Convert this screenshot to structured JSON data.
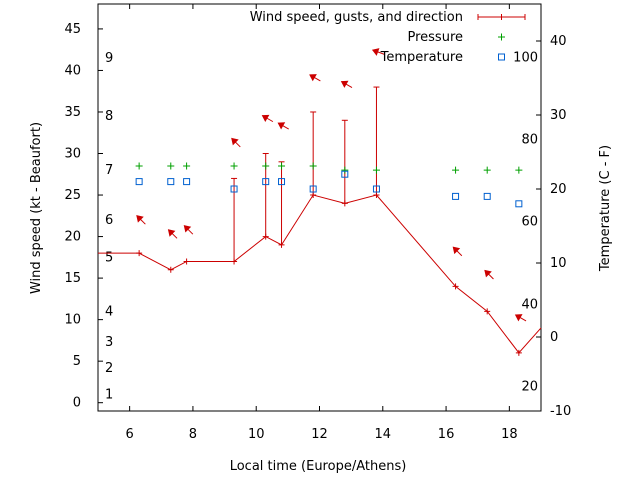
{
  "chart_data": {
    "type": "line",
    "xlabel": "Local time (Europe/Athens)",
    "ylabel_left": "Wind speed (kt - Beaufort)",
    "ylabel_right": "Temperature (C - F)",
    "xlim": [
      5,
      19
    ],
    "ylim_left": [
      -1,
      48
    ],
    "ylim_right": [
      -10,
      45
    ],
    "x_ticks": [
      6,
      8,
      10,
      12,
      14,
      16,
      18
    ],
    "y_left_ticks": [
      0,
      5,
      10,
      15,
      20,
      25,
      30,
      35,
      40,
      45
    ],
    "y_right_ticks": [
      -10,
      0,
      10,
      20,
      30,
      40
    ],
    "beaufort_labels": [
      {
        "text": "1",
        "at_kt": 1
      },
      {
        "text": "2",
        "at_kt": 4.2
      },
      {
        "text": "3",
        "at_kt": 7.3
      },
      {
        "text": "4",
        "at_kt": 11
      },
      {
        "text": "5",
        "at_kt": 17.5
      },
      {
        "text": "6",
        "at_kt": 22
      },
      {
        "text": "7",
        "at_kt": 28
      },
      {
        "text": "8",
        "at_kt": 34.5
      },
      {
        "text": "9",
        "at_kt": 41.5
      }
    ],
    "fahrenheit_labels": [
      {
        "text": "20",
        "at_c": -6.7
      },
      {
        "text": "40",
        "at_c": 4.4
      },
      {
        "text": "60",
        "at_c": 15.6
      },
      {
        "text": "80",
        "at_c": 26.7
      },
      {
        "text": "100",
        "at_c": 37.8
      }
    ],
    "legend": {
      "position": "top-right",
      "entries": [
        "Wind speed, gusts, and direction",
        "Pressure",
        "Temperature"
      ]
    },
    "series": [
      {
        "name": "Wind speed, gusts, and direction",
        "color": "#cc0000",
        "x": [
          5,
          6.3,
          7.3,
          7.8,
          9.3,
          10.3,
          10.8,
          11.8,
          12.8,
          13.8,
          16.3,
          17.3,
          18.3,
          19
        ],
        "values": [
          18,
          18,
          16,
          17,
          17,
          20,
          19,
          25,
          24,
          25,
          14,
          11,
          6,
          9
        ],
        "gusts": [
          null,
          null,
          null,
          null,
          27,
          30,
          29,
          35,
          34,
          38,
          null,
          null,
          null,
          null
        ],
        "direction_deg": [
          null,
          315,
          315,
          315,
          315,
          300,
          300,
          300,
          300,
          290,
          315,
          315,
          300,
          null
        ]
      },
      {
        "name": "Pressure",
        "color": "#00a000",
        "x": [
          6.3,
          7.3,
          7.8,
          9.3,
          10.3,
          10.8,
          11.8,
          12.8,
          13.8,
          16.3,
          17.3,
          18.3
        ],
        "values": [
          28.5,
          28.5,
          28.5,
          28.5,
          28.5,
          28.5,
          28.5,
          28,
          28,
          28,
          28,
          28
        ]
      },
      {
        "name": "Temperature",
        "color": "#0060d0",
        "x": [
          6.3,
          7.3,
          7.8,
          9.3,
          10.3,
          10.8,
          11.8,
          12.8,
          13.8,
          16.3,
          17.3,
          18.3
        ],
        "values": [
          21,
          21,
          21,
          20,
          21,
          21,
          20,
          22,
          20,
          19,
          19,
          18
        ]
      }
    ]
  }
}
